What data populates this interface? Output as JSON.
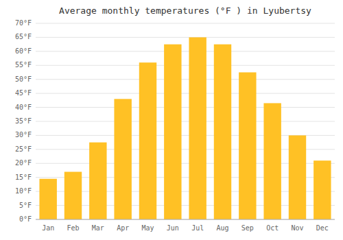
{
  "chart_data": {
    "type": "bar",
    "title": "Average monthly temperatures (°F ) in Lyubertsy",
    "categories": [
      "Jan",
      "Feb",
      "Mar",
      "Apr",
      "May",
      "Jun",
      "Jul",
      "Aug",
      "Sep",
      "Oct",
      "Nov",
      "Dec"
    ],
    "values": [
      14.5,
      17,
      27.5,
      43,
      56,
      62.5,
      65,
      62.5,
      52.5,
      41.5,
      30,
      21
    ],
    "color": "#FFC125",
    "ylim": [
      0,
      70
    ],
    "yticks": [
      {
        "value": 0,
        "label": "0°F"
      },
      {
        "value": 5,
        "label": "5°F"
      },
      {
        "value": 10,
        "label": "10°F"
      },
      {
        "value": 15,
        "label": "15°F"
      },
      {
        "value": 20,
        "label": "20°F"
      },
      {
        "value": 25,
        "label": "25°F"
      },
      {
        "value": 30,
        "label": "30°F"
      },
      {
        "value": 35,
        "label": "35°F"
      },
      {
        "value": 40,
        "label": "40°F"
      },
      {
        "value": 45,
        "label": "45°F"
      },
      {
        "value": 50,
        "label": "50°F"
      },
      {
        "value": 55,
        "label": "55°F"
      },
      {
        "value": 60,
        "label": "60°F"
      },
      {
        "value": 65,
        "label": "65°F"
      },
      {
        "value": 70,
        "label": "70°F"
      }
    ],
    "grid": true
  }
}
